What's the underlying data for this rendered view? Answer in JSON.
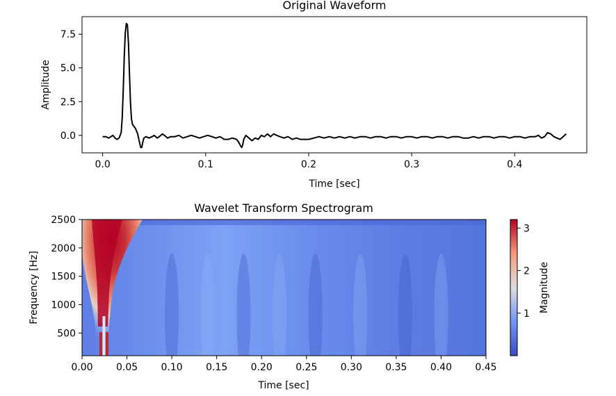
{
  "chart_data": [
    {
      "type": "line",
      "title": "Original Waveform",
      "xlabel": "Time [sec]",
      "ylabel": "Amplitude",
      "xlim": [
        -0.02,
        0.47
      ],
      "ylim": [
        -1.3,
        8.8
      ],
      "xticks": [
        0.0,
        0.1,
        0.2,
        0.3,
        0.4
      ],
      "xtick_labels": [
        "0.0",
        "0.1",
        "0.2",
        "0.3",
        "0.4"
      ],
      "yticks": [
        0.0,
        2.5,
        5.0,
        7.5
      ],
      "ytick_labels": [
        "0.0",
        "2.5",
        "5.0",
        "7.5"
      ],
      "grid": false,
      "line_color": "#000000",
      "series": [
        {
          "x": [
            0.0,
            0.003,
            0.006,
            0.008,
            0.01,
            0.012,
            0.014,
            0.016,
            0.018,
            0.019,
            0.02,
            0.021,
            0.022,
            0.023,
            0.024,
            0.025,
            0.026,
            0.027,
            0.028,
            0.029,
            0.03,
            0.031,
            0.032,
            0.034,
            0.036,
            0.037,
            0.038,
            0.039,
            0.04,
            0.042,
            0.045,
            0.048,
            0.05,
            0.053,
            0.055,
            0.058,
            0.06,
            0.063,
            0.066,
            0.07,
            0.074,
            0.078,
            0.082,
            0.086,
            0.09,
            0.094,
            0.098,
            0.102,
            0.106,
            0.11,
            0.114,
            0.118,
            0.122,
            0.126,
            0.13,
            0.132,
            0.134,
            0.135,
            0.136,
            0.137,
            0.139,
            0.142,
            0.145,
            0.148,
            0.151,
            0.154,
            0.157,
            0.16,
            0.163,
            0.166,
            0.169,
            0.172,
            0.176,
            0.18,
            0.184,
            0.188,
            0.192,
            0.196,
            0.2,
            0.205,
            0.21,
            0.215,
            0.22,
            0.225,
            0.23,
            0.235,
            0.24,
            0.245,
            0.25,
            0.255,
            0.26,
            0.265,
            0.27,
            0.275,
            0.28,
            0.285,
            0.29,
            0.295,
            0.3,
            0.305,
            0.31,
            0.315,
            0.32,
            0.325,
            0.33,
            0.335,
            0.34,
            0.345,
            0.35,
            0.355,
            0.36,
            0.365,
            0.37,
            0.375,
            0.38,
            0.385,
            0.39,
            0.395,
            0.4,
            0.405,
            0.41,
            0.415,
            0.42,
            0.423,
            0.426,
            0.429,
            0.432,
            0.435,
            0.438,
            0.441,
            0.444,
            0.447,
            0.45
          ],
          "y": [
            -0.1,
            -0.1,
            -0.2,
            -0.1,
            0.0,
            -0.2,
            -0.3,
            -0.2,
            0.2,
            1.3,
            3.4,
            5.8,
            7.6,
            8.3,
            8.2,
            6.9,
            4.6,
            2.5,
            1.2,
            0.8,
            0.7,
            0.6,
            0.5,
            0.1,
            -0.6,
            -0.9,
            -0.9,
            -0.5,
            -0.2,
            -0.1,
            -0.2,
            -0.1,
            0.0,
            -0.2,
            -0.1,
            0.1,
            0.0,
            -0.2,
            -0.1,
            -0.1,
            0.0,
            -0.2,
            -0.1,
            0.0,
            -0.1,
            -0.2,
            -0.1,
            0.0,
            -0.1,
            -0.2,
            -0.1,
            -0.3,
            -0.3,
            -0.2,
            -0.3,
            -0.5,
            -0.8,
            -0.9,
            -0.7,
            -0.3,
            0.0,
            -0.2,
            -0.4,
            -0.2,
            -0.3,
            0.0,
            -0.1,
            0.1,
            -0.1,
            0.1,
            0.0,
            -0.1,
            -0.2,
            -0.1,
            -0.3,
            -0.2,
            -0.3,
            -0.3,
            -0.3,
            -0.2,
            -0.1,
            -0.2,
            -0.1,
            -0.2,
            -0.1,
            -0.2,
            -0.1,
            -0.2,
            -0.1,
            -0.1,
            -0.2,
            -0.1,
            -0.1,
            -0.2,
            -0.1,
            -0.1,
            -0.2,
            -0.1,
            -0.1,
            -0.2,
            -0.1,
            -0.1,
            -0.2,
            -0.1,
            -0.1,
            -0.2,
            -0.1,
            -0.1,
            -0.2,
            -0.2,
            -0.1,
            -0.2,
            -0.1,
            -0.1,
            -0.2,
            -0.1,
            -0.1,
            -0.2,
            -0.1,
            -0.1,
            -0.2,
            -0.1,
            -0.1,
            0.0,
            -0.2,
            -0.1,
            0.2,
            0.1,
            -0.1,
            -0.2,
            -0.3,
            -0.1,
            0.1
          ]
        }
      ]
    },
    {
      "type": "heatmap",
      "title": "Wavelet Transform Spectrogram",
      "xlabel": "Time [sec]",
      "ylabel": "Frequency [Hz]",
      "xlim": [
        0.0,
        0.45
      ],
      "ylim": [
        100,
        2500
      ],
      "xticks": [
        0.0,
        0.05,
        0.1,
        0.15,
        0.2,
        0.25,
        0.3,
        0.35,
        0.4,
        0.45
      ],
      "xtick_labels": [
        "0.00",
        "0.05",
        "0.10",
        "0.15",
        "0.20",
        "0.25",
        "0.30",
        "0.35",
        "0.40",
        "0.45"
      ],
      "yticks": [
        500,
        1000,
        1500,
        2000,
        2500
      ],
      "ytick_labels": [
        "500",
        "1000",
        "1500",
        "2000",
        "2500"
      ],
      "colormap": "coolwarm",
      "colorbar": {
        "label": "Magnitude",
        "range": [
          0.0,
          3.2
        ],
        "ticks": [
          1,
          2,
          3
        ],
        "tick_labels": [
          "1",
          "2",
          "3"
        ]
      },
      "features": [
        {
          "kind": "peak",
          "time": 0.025,
          "magnitude": 3.2
        }
      ]
    }
  ]
}
